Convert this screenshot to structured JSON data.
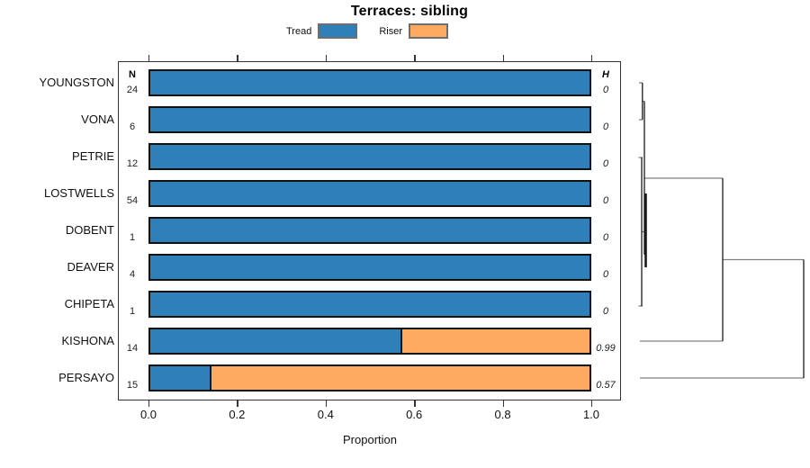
{
  "title": "Terraces: sibling",
  "legend": {
    "items": [
      {
        "label": "Tread",
        "color": "#2f7fb8"
      },
      {
        "label": "Riser",
        "color": "#fcaa60"
      }
    ]
  },
  "columns": {
    "n_header": "N",
    "h_header": "H"
  },
  "x_axis": {
    "label": "Proportion",
    "tick_labels": [
      "0.0",
      "0.2",
      "0.4",
      "0.6",
      "0.8",
      "1.0"
    ]
  },
  "chart_data": {
    "type": "bar",
    "orientation": "horizontal-stacked",
    "title": "Terraces: sibling",
    "xlabel": "Proportion",
    "xlim": [
      0.0,
      1.0
    ],
    "categories": [
      "YOUNGSTON",
      "VONA",
      "PETRIE",
      "LOSTWELLS",
      "DOBENT",
      "DEAVER",
      "CHIPETA",
      "KISHONA",
      "PERSAYO"
    ],
    "series": [
      {
        "name": "Tread",
        "color": "#2f7fb8",
        "values": [
          1.0,
          1.0,
          1.0,
          1.0,
          1.0,
          1.0,
          1.0,
          0.57,
          0.135
        ]
      },
      {
        "name": "Riser",
        "color": "#fcaa60",
        "values": [
          0.0,
          0.0,
          0.0,
          0.0,
          0.0,
          0.0,
          0.0,
          0.43,
          0.865
        ]
      }
    ],
    "n_values": [
      "24",
      "6",
      "12",
      "54",
      "1",
      "4",
      "1",
      "14",
      "15"
    ],
    "h_values": [
      "0",
      "0",
      "0",
      "0",
      "0",
      "0",
      "0",
      "0.99",
      "0.57"
    ],
    "legend_position": "top",
    "grid": false,
    "dendrogram": "right-side cluster tree: YOUNGSTON+VONA and PETRIE..CHIPETA fuse at ~0 height; that 7-leaf cluster joins KISHONA at mid height; PERSAYO joins last at the root (rightmost)"
  }
}
